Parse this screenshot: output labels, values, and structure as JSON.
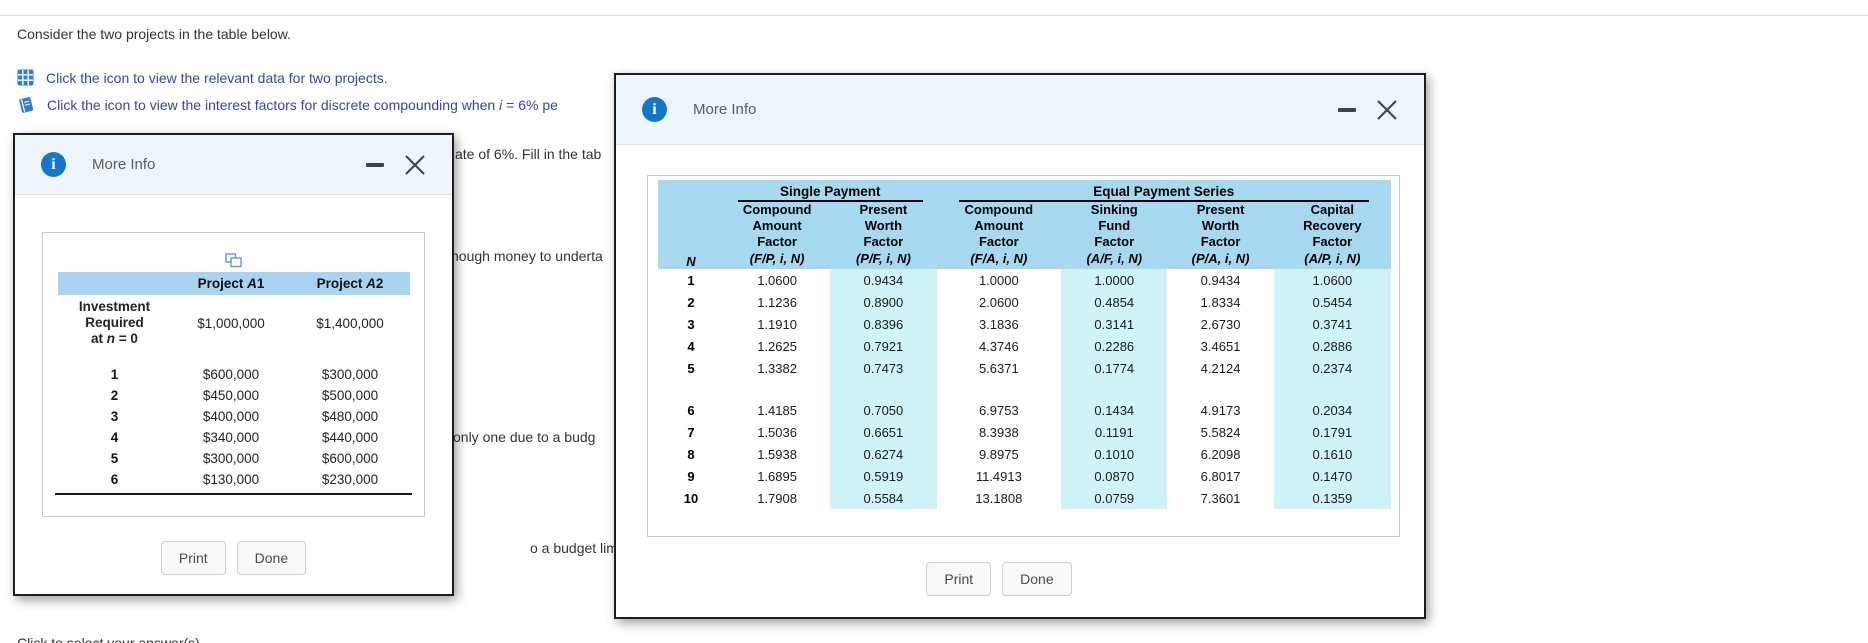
{
  "page": {
    "intro": "Consider the two projects in the table below.",
    "instruction1": "Click the icon to view the relevant data for two projects.",
    "instruction2_before": "Click the icon to view the interest factors for discrete compounding when ",
    "instruction2_var": "i",
    "instruction2_after": " = 6% pe",
    "fragments": {
      "f1": "ate of 6%. Fill in the tab",
      "f2": "hough money to underta",
      "f3": "only one due to a budg",
      "f4": "o a budget limit.",
      "f5": "Click to select your answer(s)."
    }
  },
  "colors": {
    "info_badge_blue": "#1477cc",
    "link_indigo": "#3742ae",
    "icon_blue": "#2e7cdb",
    "projects_header_blue": "#a8d3f3",
    "factors_header_blue": "#a6d8ef",
    "factors_cyan_column": "#cff3f6"
  },
  "projects_dialog": {
    "title": "More Info",
    "header_cols": [
      {
        "prefix": "Project ",
        "var": "A",
        "num": "1"
      },
      {
        "prefix": "Project ",
        "var": "A",
        "num": "2"
      }
    ],
    "investment_lines": [
      "Investment",
      "Required"
    ],
    "investment_at": {
      "before": "at ",
      "var": "n",
      "after": " = 0"
    },
    "investment_values": [
      "$1,000,000",
      "$1,400,000"
    ],
    "rows": [
      [
        "1",
        "$600,000",
        "$300,000"
      ],
      [
        "2",
        "$450,000",
        "$500,000"
      ],
      [
        "3",
        "$400,000",
        "$480,000"
      ],
      [
        "4",
        "$340,000",
        "$440,000"
      ],
      [
        "5",
        "$300,000",
        "$600,000"
      ],
      [
        "6",
        "$130,000",
        "$230,000"
      ]
    ],
    "print_label": "Print",
    "done_label": "Done"
  },
  "factors_dialog": {
    "title": "More Info",
    "group_headers": [
      "Single Payment",
      "Equal Payment Series"
    ],
    "n_header": "N",
    "col_headers": [
      {
        "lines": [
          "Compound",
          "Amount",
          "Factor"
        ],
        "formula": "(F/P, i, N)"
      },
      {
        "lines": [
          "Present",
          "Worth",
          "Factor"
        ],
        "formula": "(P/F, i, N)"
      },
      {
        "lines": [
          "Compound",
          "Amount",
          "Factor"
        ],
        "formula": "(F/A, i, N)"
      },
      {
        "lines": [
          "Sinking",
          "Fund",
          "Factor"
        ],
        "formula": "(A/F, i, N)"
      },
      {
        "lines": [
          "Present",
          "Worth",
          "Factor"
        ],
        "formula": "(P/A, i, N)"
      },
      {
        "lines": [
          "Capital",
          "Recovery",
          "Factor"
        ],
        "formula": "(A/P, i, N)"
      }
    ],
    "rows": [
      [
        "1",
        "1.0600",
        "0.9434",
        "1.0000",
        "1.0000",
        "0.9434",
        "1.0600"
      ],
      [
        "2",
        "1.1236",
        "0.8900",
        "2.0600",
        "0.4854",
        "1.8334",
        "0.5454"
      ],
      [
        "3",
        "1.1910",
        "0.8396",
        "3.1836",
        "0.3141",
        "2.6730",
        "0.3741"
      ],
      [
        "4",
        "1.2625",
        "0.7921",
        "4.3746",
        "0.2286",
        "3.4651",
        "0.2886"
      ],
      [
        "5",
        "1.3382",
        "0.7473",
        "5.6371",
        "0.1774",
        "4.2124",
        "0.2374"
      ],
      [
        "6",
        "1.4185",
        "0.7050",
        "6.9753",
        "0.1434",
        "4.9173",
        "0.2034"
      ],
      [
        "7",
        "1.5036",
        "0.6651",
        "8.3938",
        "0.1191",
        "5.5824",
        "0.1791"
      ],
      [
        "8",
        "1.5938",
        "0.6274",
        "9.8975",
        "0.1010",
        "6.2098",
        "0.1610"
      ],
      [
        "9",
        "1.6895",
        "0.5919",
        "11.4913",
        "0.0870",
        "6.8017",
        "0.1470"
      ],
      [
        "10",
        "1.7908",
        "0.5584",
        "13.1808",
        "0.0759",
        "7.3601",
        "0.1359"
      ]
    ],
    "print_label": "Print",
    "done_label": "Done"
  }
}
